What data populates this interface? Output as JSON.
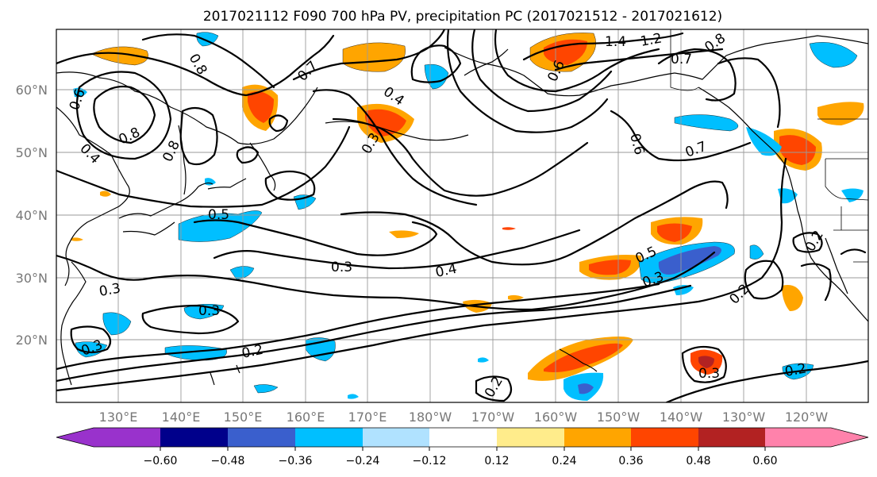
{
  "title": "2017021112 F090 700 hPa PV, precipitation PC (2017021512 - 2017021612)",
  "lat_ticks": [
    "60°N",
    "50°N",
    "40°N",
    "30°N",
    "20°N"
  ],
  "lon_ticks": [
    "130°E",
    "140°E",
    "150°E",
    "160°E",
    "170°E",
    "180°W",
    "170°W",
    "160°W",
    "150°W",
    "140°W",
    "130°W",
    "120°W"
  ],
  "colorbar": {
    "ticks": [
      "−0.60",
      "−0.48",
      "−0.36",
      "−0.24",
      "−0.12",
      "0.12",
      "0.24",
      "0.36",
      "0.48",
      "0.60"
    ],
    "colors": [
      "#9932cc",
      "#00008b",
      "#3a5fcd",
      "#00bfff",
      "#b0e2ff",
      "#ffffff",
      "#ffec8b",
      "#ffa500",
      "#ff4500",
      "#b22222",
      "#ff82ab"
    ]
  },
  "contour_labels": [
    {
      "text": "0.8"
    },
    {
      "text": "0.7"
    },
    {
      "text": "0.6"
    },
    {
      "text": "0.8"
    },
    {
      "text": "0.4"
    },
    {
      "text": "0.4"
    },
    {
      "text": "0.8"
    },
    {
      "text": "0.3"
    },
    {
      "text": "1.4"
    },
    {
      "text": "1.2"
    },
    {
      "text": "0.7"
    },
    {
      "text": "0.8"
    },
    {
      "text": "0.6"
    },
    {
      "text": "0.7"
    },
    {
      "text": "0.5"
    },
    {
      "text": "0.3"
    },
    {
      "text": "0.4"
    },
    {
      "text": "0.3"
    },
    {
      "text": "0.3"
    },
    {
      "text": "0.2"
    },
    {
      "text": "0.3"
    },
    {
      "text": "0.5"
    },
    {
      "text": "0.3"
    },
    {
      "text": "0.2"
    },
    {
      "text": "0.2"
    },
    {
      "text": "0.3"
    },
    {
      "text": "0.2"
    },
    {
      "text": "0.6"
    },
    {
      "text": "0.2"
    }
  ]
}
